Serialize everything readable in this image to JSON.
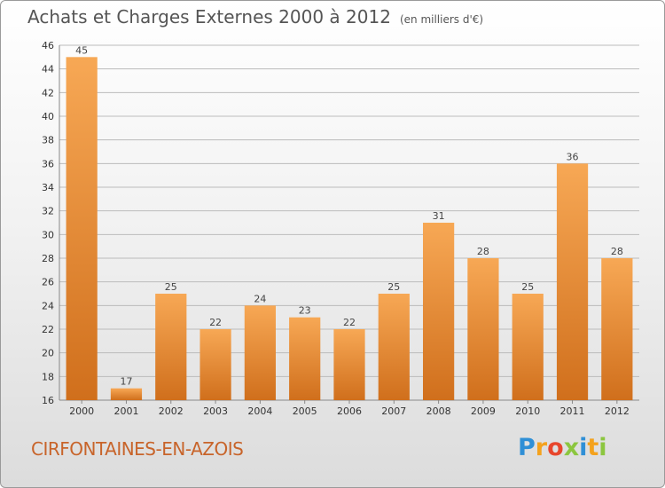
{
  "title": "Achats et Charges Externes 2000 à 2012",
  "subtitle": "(en milliers d'€)",
  "commune": "CIRFONTAINES-EN-AZOIS",
  "logo": {
    "letters": [
      "P",
      "r",
      "o",
      "x",
      "i",
      "t",
      "i"
    ],
    "colors": [
      "#2f8fd6",
      "#f4a21d",
      "#e8462c",
      "#8cc63f",
      "#2f8fd6",
      "#f4a21d",
      "#8cc63f"
    ]
  },
  "colors": {
    "bar_light": "#f7a855",
    "bar_dark": "#d06f1c",
    "grid": "#bbbbbb"
  },
  "chart_data": {
    "type": "bar",
    "title": "Achats et Charges Externes 2000 à 2012",
    "subtitle": "(en milliers d'€)",
    "categories": [
      "2000",
      "2001",
      "2002",
      "2003",
      "2004",
      "2005",
      "2006",
      "2007",
      "2008",
      "2009",
      "2010",
      "2011",
      "2012"
    ],
    "values": [
      45,
      17,
      25,
      22,
      24,
      23,
      22,
      25,
      31,
      28,
      25,
      36,
      28
    ],
    "ylim": [
      16,
      46
    ],
    "yticks": [
      16,
      18,
      20,
      22,
      24,
      26,
      28,
      30,
      32,
      34,
      36,
      38,
      40,
      42,
      44,
      46
    ],
    "grid": true,
    "xlabel": "",
    "ylabel": ""
  }
}
